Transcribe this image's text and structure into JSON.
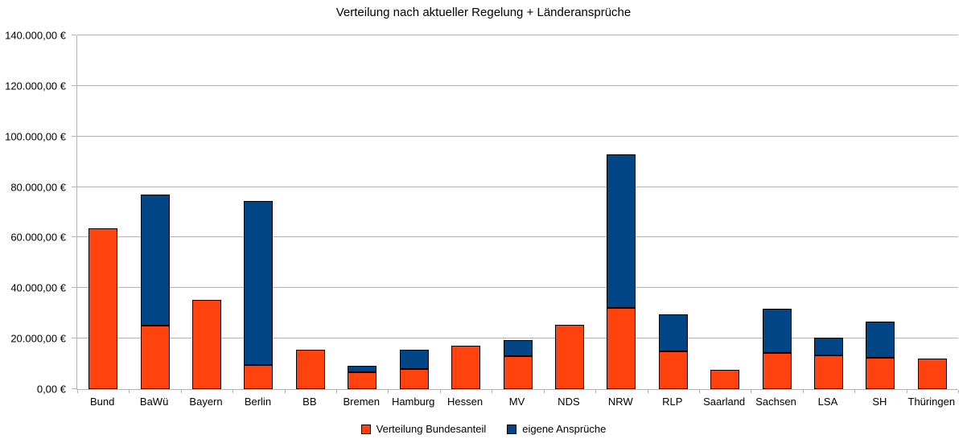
{
  "chart_data": {
    "type": "bar",
    "stacked": true,
    "title": "Verteilung nach aktueller Regelung + Länderansprüche",
    "categories": [
      "Bund",
      "BaWü",
      "Bayern",
      "Berlin",
      "BB",
      "Bremen",
      "Hamburg",
      "Hessen",
      "MV",
      "NDS",
      "NRW",
      "RLP",
      "Saarland",
      "Sachsen",
      "LSA",
      "SH",
      "Thüringen"
    ],
    "series": [
      {
        "name": "Verteilung Bundesanteil",
        "color": "#FF420E",
        "values": [
          63500,
          25300,
          35200,
          9500,
          15700,
          6800,
          8100,
          17200,
          13100,
          25400,
          32000,
          15000,
          7800,
          14200,
          13300,
          12300,
          12100
        ]
      },
      {
        "name": "eigene Ansprüche",
        "color": "#004586",
        "values": [
          0,
          51700,
          0,
          65000,
          0,
          2500,
          7400,
          0,
          6300,
          0,
          61000,
          14700,
          0,
          17600,
          7200,
          14400,
          0
        ]
      }
    ],
    "xlabel": "",
    "ylabel": "",
    "ylim": [
      0,
      140000
    ],
    "ytick_step": 20000,
    "ytick_labels": [
      "0,00 €",
      "20.000,00 €",
      "40.000,00 €",
      "60.000,00 €",
      "80.000,00 €",
      "100.000,00 €",
      "120.000,00 €",
      "140.000,00 €"
    ],
    "grid": true,
    "legend_position": "bottom",
    "colors": {
      "background": "#ffffff",
      "gridline": "#b3b3b3",
      "axis": "#b3b3b3",
      "text": "#000000",
      "bar_border": "#000000"
    }
  }
}
